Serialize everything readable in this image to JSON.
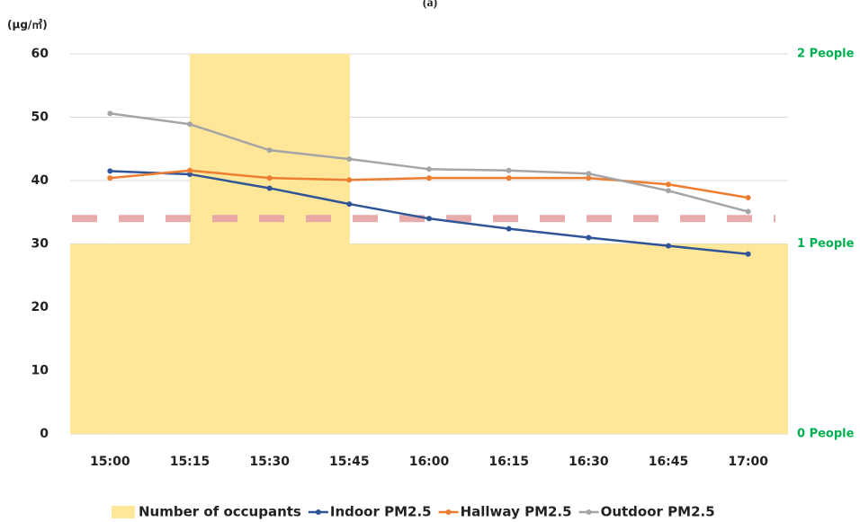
{
  "chart_data": {
    "type": "line",
    "title": "(a)",
    "y_label": "(μg/㎥)",
    "categories": [
      "15:00",
      "15:15",
      "15:30",
      "15:45",
      "16:00",
      "16:15",
      "16:30",
      "16:45",
      "17:00"
    ],
    "ylim": [
      0,
      60
    ],
    "yticks": [
      0,
      10,
      20,
      30,
      40,
      50,
      60
    ],
    "grid": true,
    "y2lim": [
      0,
      2
    ],
    "y2ticks": [
      {
        "value": 0,
        "label": "0 People"
      },
      {
        "value": 1,
        "label": "1 People"
      },
      {
        "value": 2,
        "label": "2 People"
      }
    ],
    "reference_line": {
      "value": 34,
      "color": "#e6a3a3"
    },
    "series": [
      {
        "name": "Number of occupants",
        "type": "area",
        "axis": "y2",
        "color": "#ffe699",
        "values": [
          1,
          2,
          2,
          2,
          1,
          1,
          1,
          1,
          1
        ]
      },
      {
        "name": "Indoor PM2.5",
        "color": "#2f5597",
        "values": [
          41.5,
          41,
          38.8,
          36.3,
          34,
          32.4,
          31,
          29.7,
          28.4
        ]
      },
      {
        "name": "Hallway PM2.5",
        "color": "#ed7d31",
        "values": [
          40.4,
          41.6,
          40.4,
          40.1,
          40.4,
          40.4,
          40.4,
          39.4,
          37.3
        ]
      },
      {
        "name": "Outdoor PM2.5",
        "color": "#a5a5a5",
        "values": [
          50.6,
          48.9,
          44.8,
          43.4,
          41.8,
          41.6,
          41.1,
          38.4,
          35.1
        ]
      }
    ],
    "legend": "bottom"
  }
}
